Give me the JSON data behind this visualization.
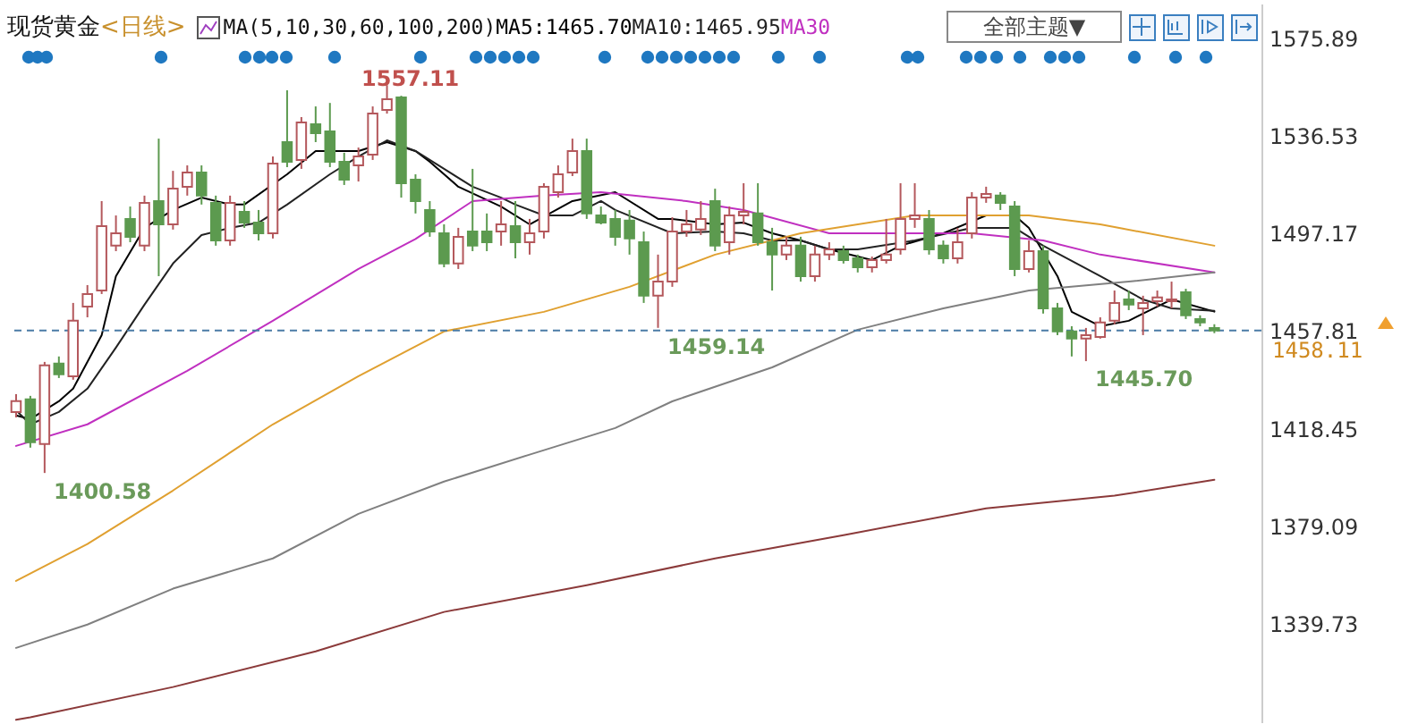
{
  "chart_data": {
    "type": "candlestick",
    "title": "现货黄金",
    "subtitle": "<日线>",
    "legend_title": "MA(5,10,30,60,100,200)",
    "legend": "top",
    "tick_labels": "y",
    "categories": [
      null,
      null,
      null,
      null,
      null,
      null,
      null,
      null,
      null,
      null,
      null,
      null,
      null,
      null,
      null,
      null,
      null,
      null,
      null,
      null,
      null,
      null,
      null,
      null,
      null,
      null,
      null,
      null,
      null,
      null,
      null,
      null,
      null,
      null,
      null,
      null,
      null,
      null,
      null,
      null,
      null,
      null,
      null,
      null,
      null,
      null,
      null,
      null,
      null,
      null,
      null,
      null,
      null,
      null,
      null,
      null,
      null,
      null,
      null,
      null,
      null,
      null,
      null,
      null,
      null,
      null,
      null,
      null,
      null,
      null,
      null,
      null,
      null,
      null,
      null,
      null,
      null,
      null,
      null,
      null,
      null,
      null,
      null,
      null,
      null
    ],
    "ohlc": [
      [
        1425.2,
        1432.4,
        1423.0,
        1429.6
      ],
      [
        1430.3,
        1431.7,
        1410.8,
        1413.0
      ],
      [
        1412.3,
        1445.4,
        1400.58,
        1444.0
      ],
      [
        1444.7,
        1447.6,
        1438.9,
        1440.4
      ],
      [
        1439.6,
        1469.2,
        1438.2,
        1462.0
      ],
      [
        1467.7,
        1476.4,
        1463.4,
        1472.8
      ],
      [
        1474.2,
        1510.3,
        1472.8,
        1500.2
      ],
      [
        1492.3,
        1504.5,
        1490.1,
        1497.3
      ],
      [
        1503.1,
        1508.1,
        1493.7,
        1495.9
      ],
      [
        1492.3,
        1512.5,
        1490.1,
        1509.6
      ],
      [
        1510.3,
        1535.5,
        1480.0,
        1500.9
      ],
      [
        1500.9,
        1522.5,
        1498.8,
        1515.3
      ],
      [
        1516.1,
        1524.7,
        1512.5,
        1521.8
      ],
      [
        1521.8,
        1524.7,
        1508.9,
        1512.5
      ],
      [
        1509.6,
        1512.5,
        1492.3,
        1494.4
      ],
      [
        1494.4,
        1512.5,
        1492.3,
        1509.6
      ],
      [
        1506.0,
        1510.3,
        1499.5,
        1501.6
      ],
      [
        1501.6,
        1506.7,
        1494.4,
        1497.3
      ],
      [
        1497.3,
        1528.3,
        1495.2,
        1525.4
      ],
      [
        1534.1,
        1555.0,
        1524.0,
        1526.2
      ],
      [
        1526.9,
        1544.2,
        1523.3,
        1542.0
      ],
      [
        1541.3,
        1548.5,
        1534.1,
        1537.7
      ],
      [
        1538.4,
        1549.9,
        1524.0,
        1526.2
      ],
      [
        1526.2,
        1529.8,
        1516.8,
        1518.9
      ],
      [
        1524.7,
        1531.9,
        1518.2,
        1528.3
      ],
      [
        1529.0,
        1548.5,
        1526.9,
        1545.6
      ],
      [
        1547.1,
        1557.11,
        1545.6,
        1551.4
      ],
      [
        1552.1,
        1552.8,
        1511.7,
        1517.5
      ],
      [
        1518.9,
        1521.1,
        1505.3,
        1510.3
      ],
      [
        1506.7,
        1510.3,
        1495.9,
        1498.0
      ],
      [
        1497.3,
        1500.9,
        1483.6,
        1485.1
      ],
      [
        1485.1,
        1499.5,
        1482.9,
        1495.9
      ],
      [
        1498.0,
        1523.3,
        1490.1,
        1492.3
      ],
      [
        1498.0,
        1505.3,
        1490.1,
        1493.7
      ],
      [
        1498.0,
        1510.3,
        1492.3,
        1500.9
      ],
      [
        1500.2,
        1510.3,
        1487.2,
        1493.7
      ],
      [
        1493.7,
        1503.1,
        1488.7,
        1497.3
      ],
      [
        1498.0,
        1517.5,
        1495.2,
        1516.1
      ],
      [
        1513.9,
        1524.7,
        1511.7,
        1521.1
      ],
      [
        1521.8,
        1535.5,
        1520.4,
        1530.5
      ],
      [
        1530.5,
        1535.5,
        1503.1,
        1505.3
      ],
      [
        1504.5,
        1508.1,
        1500.9,
        1501.6
      ],
      [
        1503.1,
        1506.7,
        1492.3,
        1495.9
      ],
      [
        1502.4,
        1506.7,
        1488.7,
        1495.2
      ],
      [
        1493.7,
        1498.0,
        1469.2,
        1472.1
      ],
      [
        1472.1,
        1488.7,
        1459.14,
        1477.8
      ],
      [
        1477.8,
        1503.8,
        1475.7,
        1498.0
      ],
      [
        1498.0,
        1506.7,
        1495.9,
        1500.9
      ],
      [
        1498.8,
        1510.3,
        1496.6,
        1503.1
      ],
      [
        1510.3,
        1515.3,
        1490.1,
        1492.3
      ],
      [
        1493.7,
        1508.1,
        1488.7,
        1504.5
      ],
      [
        1504.5,
        1517.5,
        1500.9,
        1506.0
      ],
      [
        1505.3,
        1517.5,
        1492.3,
        1493.7
      ],
      [
        1493.7,
        1499.5,
        1474.2,
        1488.7
      ],
      [
        1488.7,
        1495.9,
        1486.5,
        1492.3
      ],
      [
        1492.3,
        1495.9,
        1477.8,
        1480.0
      ],
      [
        1480.0,
        1492.3,
        1477.8,
        1488.7
      ],
      [
        1488.7,
        1493.7,
        1486.5,
        1490.8
      ],
      [
        1490.1,
        1492.3,
        1485.1,
        1486.5
      ],
      [
        1487.2,
        1488.7,
        1481.5,
        1483.6
      ],
      [
        1483.6,
        1487.9,
        1481.5,
        1486.5
      ],
      [
        1486.5,
        1503.1,
        1485.1,
        1488.7
      ],
      [
        1490.8,
        1517.5,
        1488.7,
        1503.1
      ],
      [
        1503.1,
        1517.5,
        1499.5,
        1504.5
      ],
      [
        1503.1,
        1506.7,
        1488.7,
        1490.8
      ],
      [
        1492.3,
        1494.4,
        1485.1,
        1487.2
      ],
      [
        1487.2,
        1499.5,
        1485.1,
        1493.7
      ],
      [
        1497.3,
        1513.9,
        1495.2,
        1511.7
      ],
      [
        1511.7,
        1516.1,
        1509.6,
        1513.2
      ],
      [
        1512.5,
        1513.9,
        1506.7,
        1509.6
      ],
      [
        1508.1,
        1510.3,
        1480.0,
        1482.9
      ],
      [
        1482.9,
        1494.4,
        1481.5,
        1490.1
      ],
      [
        1490.1,
        1492.3,
        1464.9,
        1467.0
      ],
      [
        1467.0,
        1469.2,
        1456.2,
        1457.7
      ],
      [
        1457.7,
        1459.8,
        1447.6,
        1454.8
      ],
      [
        1454.8,
        1459.1,
        1445.7,
        1456.2
      ],
      [
        1455.5,
        1463.4,
        1454.8,
        1461.3
      ],
      [
        1462.0,
        1474.2,
        1460.6,
        1469.2
      ],
      [
        1470.6,
        1474.2,
        1466.3,
        1468.5
      ],
      [
        1467.0,
        1472.1,
        1456.2,
        1469.2
      ],
      [
        1469.9,
        1474.2,
        1467.7,
        1471.4
      ],
      [
        1469.9,
        1477.8,
        1467.0,
        1470.6
      ],
      [
        1473.5,
        1474.9,
        1462.7,
        1464.2
      ],
      [
        1462.7,
        1464.2,
        1459.8,
        1461.3
      ],
      [
        1459.1,
        1460.6,
        1457.0,
        1458.11
      ]
    ],
    "colors": [
      "#b4585c",
      "#5c9a4f",
      "#b4585c",
      "#5c9a4f",
      "#b4585c",
      "#b4585c",
      "#b4585c",
      "#b4585c",
      "#5c9a4f",
      "#b4585c",
      "#5c9a4f",
      "#b4585c",
      "#b4585c",
      "#5c9a4f",
      "#5c9a4f",
      "#b4585c",
      "#5c9a4f",
      "#5c9a4f",
      "#b4585c",
      "#5c9a4f",
      "#b4585c",
      "#5c9a4f",
      "#5c9a4f",
      "#5c9a4f",
      "#b4585c",
      "#b4585c",
      "#b4585c",
      "#5c9a4f",
      "#5c9a4f",
      "#5c9a4f",
      "#5c9a4f",
      "#b4585c",
      "#5c9a4f",
      "#5c9a4f",
      "#b4585c",
      "#5c9a4f",
      "#b4585c",
      "#b4585c",
      "#b4585c",
      "#b4585c",
      "#5c9a4f",
      "#5c9a4f",
      "#5c9a4f",
      "#5c9a4f",
      "#5c9a4f",
      "#b4585c",
      "#b4585c",
      "#b4585c",
      "#b4585c",
      "#5c9a4f",
      "#b4585c",
      "#b4585c",
      "#5c9a4f",
      "#5c9a4f",
      "#b4585c",
      "#5c9a4f",
      "#b4585c",
      "#b4585c",
      "#5c9a4f",
      "#5c9a4f",
      "#b4585c",
      "#b4585c",
      "#b4585c",
      "#b4585c",
      "#5c9a4f",
      "#5c9a4f",
      "#b4585c",
      "#b4585c",
      "#b4585c",
      "#5c9a4f",
      "#5c9a4f",
      "#b4585c",
      "#5c9a4f",
      "#5c9a4f",
      "#5c9a4f",
      "#b4585c",
      "#b4585c",
      "#b4585c",
      "#5c9a4f",
      "#b4585c",
      "#b4585c",
      "#b4585c",
      "#5c9a4f",
      "#5c9a4f",
      "#5c9a4f"
    ],
    "ylim": [
      1300,
      1590
    ],
    "yticks": [
      1575.89,
      1536.53,
      1497.17,
      1457.81,
      1418.45,
      1379.09,
      1339.73
    ],
    "series": [
      {
        "name": "MA5:1465.70",
        "type": "line",
        "color": "#000000",
        "values": [
          1423.8,
          1422.3,
          null,
          1429.5,
          1434.6,
          null,
          1456.2,
          1480.0,
          null,
          1499.5,
          null,
          1506.7,
          null,
          1511.7,
          null,
          1508.9,
          1508.9,
          null,
          null,
          1521.1,
          null,
          1530.5,
          null,
          null,
          1530.5,
          null,
          1534.1,
          null,
          1530.5,
          1526.2,
          null,
          1516.1,
          null,
          null,
          1508.1,
          null,
          1500.9,
          null,
          null,
          1510.3,
          null,
          null,
          1513.9,
          null,
          null,
          1503.1,
          1503.1,
          null,
          null,
          1500.9,
          null,
          1501.6,
          null,
          1497.3,
          null,
          1494.4,
          null,
          1490.8,
          null,
          null,
          1486.5,
          null,
          1492.3,
          null,
          null,
          1497.3,
          null,
          null,
          1504.5,
          null,
          1504.5,
          1499.5,
          null,
          1480.0,
          1465.6,
          null,
          1459.8,
          null,
          1462.0,
          null,
          null,
          1470.6,
          null,
          null,
          1465.7
        ]
      },
      {
        "name": "MA10:1465.95",
        "type": "line",
        "color": "#222222",
        "values": [
          1425.9,
          1420.2,
          null,
          1425.2,
          null,
          1434.6,
          null,
          1451.2,
          null,
          1468.5,
          null,
          1485.1,
          null,
          1496.6,
          null,
          1499.5,
          null,
          1501.6,
          null,
          1508.9,
          null,
          null,
          1521.1,
          null,
          1528.3,
          null,
          1534.8,
          null,
          1530.5,
          null,
          1523.3,
          null,
          1516.1,
          null,
          1511.7,
          1508.9,
          null,
          1504.5,
          null,
          1504.5,
          null,
          1510.3,
          1506.7,
          null,
          null,
          null,
          1497.3,
          null,
          null,
          1498.0,
          null,
          1497.3,
          null,
          1494.4,
          null,
          1494.4,
          null,
          1490.8,
          null,
          1490.8,
          null,
          null,
          null,
          1494.4,
          null,
          null,
          null,
          1499.5,
          null,
          null,
          1499.5,
          null,
          1492.3,
          null,
          null,
          null,
          1480.0,
          null,
          null,
          1470.6,
          null,
          1467.0,
          null,
          null,
          1466.0
        ]
      },
      {
        "name": "MA30",
        "type": "line",
        "color": "#c030c0",
        "values": [
          1411.5,
          null,
          null,
          null,
          null,
          1420.2,
          null,
          null,
          null,
          null,
          null,
          null,
          1441.8,
          null,
          null,
          null,
          null,
          null,
          1462.0,
          null,
          null,
          null,
          null,
          null,
          1482.9,
          null,
          null,
          null,
          1495.0,
          null,
          null,
          null,
          1510.3,
          null,
          null,
          null,
          null,
          1512.5,
          null,
          null,
          null,
          1513.9,
          null,
          null,
          null,
          null,
          null,
          1510.3,
          null,
          null,
          null,
          1506.7,
          null,
          null,
          null,
          null,
          null,
          1497.3,
          null,
          null,
          null,
          null,
          null,
          null,
          null,
          null,
          null,
          1497.3,
          null,
          null,
          null,
          null,
          1494.4,
          null,
          null,
          null,
          1488.7,
          null,
          null,
          null,
          null,
          null,
          null,
          null,
          1481.5
        ]
      },
      {
        "type": "line",
        "color": "#e0a030",
        "values": [
          1357,
          null,
          null,
          null,
          null,
          1371.9,
          null,
          null,
          null,
          null,
          null,
          1393.5,
          null,
          null,
          null,
          null,
          null,
          null,
          1420.2,
          null,
          null,
          null,
          null,
          null,
          1439.6,
          null,
          null,
          null,
          null,
          null,
          1457.7,
          null,
          null,
          null,
          null,
          null,
          null,
          1465.6,
          null,
          null,
          null,
          null,
          null,
          1475.7,
          null,
          null,
          null,
          null,
          null,
          1488.7,
          null,
          null,
          null,
          null,
          null,
          1497.3,
          null,
          null,
          null,
          null,
          null,
          null,
          null,
          1504.5,
          null,
          null,
          null,
          null,
          null,
          null,
          null,
          1504.5,
          null,
          null,
          null,
          null,
          1500.9,
          null,
          null,
          null,
          null,
          null,
          null,
          null,
          1492.3
        ]
      },
      {
        "type": "line",
        "color": "#808080",
        "values": [
          1330,
          null,
          null,
          null,
          null,
          1339.4,
          null,
          null,
          null,
          null,
          null,
          1353.9,
          null,
          null,
          null,
          null,
          null,
          null,
          1366.1,
          null,
          null,
          null,
          null,
          null,
          1384.1,
          null,
          null,
          null,
          null,
          null,
          1397.1,
          null,
          null,
          null,
          null,
          null,
          1408.0,
          null,
          null,
          null,
          null,
          null,
          1418.7,
          null,
          null,
          null,
          1429.5,
          null,
          null,
          null,
          null,
          null,
          null,
          1443.2,
          null,
          null,
          null,
          null,
          null,
          1458.4,
          null,
          null,
          null,
          null,
          null,
          1467.0,
          null,
          null,
          null,
          null,
          null,
          1474.2,
          null,
          null,
          null,
          null,
          null,
          null,
          1477.8,
          null,
          null,
          null,
          null,
          null,
          1481.5
        ]
      },
      {
        "type": "line",
        "color": "#8b3a3a",
        "values": [
          1301,
          1302.0,
          null,
          null,
          null,
          null,
          null,
          null,
          null,
          null,
          null,
          1314.2,
          null,
          null,
          null,
          null,
          null,
          null,
          null,
          null,
          null,
          1328.6,
          null,
          null,
          null,
          null,
          null,
          null,
          null,
          null,
          1344.5,
          null,
          null,
          null,
          null,
          null,
          null,
          null,
          null,
          null,
          1355.3,
          null,
          null,
          null,
          null,
          null,
          null,
          null,
          null,
          1366.1,
          null,
          null,
          null,
          null,
          null,
          null,
          null,
          null,
          1375.5,
          null,
          null,
          null,
          null,
          null,
          null,
          null,
          null,
          null,
          1386.3,
          null,
          null,
          null,
          null,
          null,
          null,
          null,
          null,
          1391.4,
          null,
          null,
          null,
          null,
          null,
          null,
          1397.8
        ]
      }
    ],
    "ref_lines": [
      {
        "axis": "y",
        "value": 1458.11,
        "label": "1458.11",
        "color": "#4a7ba6",
        "line_style": "dashed"
      }
    ],
    "annotations": [
      "1557.11",
      "1400.58",
      "1459.14",
      "1445.70",
      "全部主题▼"
    ]
  }
}
